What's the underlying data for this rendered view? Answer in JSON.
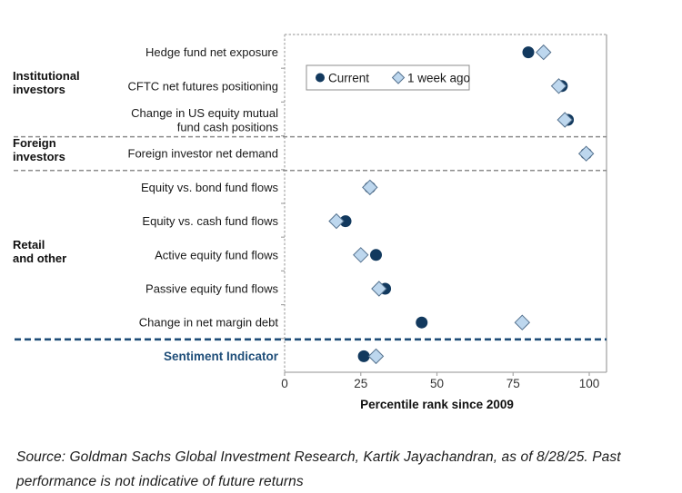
{
  "chart_data": {
    "type": "scatter",
    "title": "",
    "xlabel": "Percentile rank since 2009",
    "x_ticks": [
      0,
      25,
      50,
      75,
      100
    ],
    "xlim": [
      0,
      105
    ],
    "grid": false,
    "legend_position": "top-left-inside",
    "legend": {
      "current_label": "Current",
      "week_ago_label": "1 week ago"
    },
    "colors": {
      "current_marker": "#12395E",
      "week_ago_fill": "#BDD7EE",
      "week_ago_stroke": "#54718E",
      "navy_accent": "#1F4E79",
      "separator_gray": "#8C8C8C",
      "axis_gray": "#A6A6A6",
      "label_text": "#1A1A1A"
    },
    "groups": [
      {
        "label_lines": [
          "Institutional",
          "investors"
        ],
        "first_row": 0,
        "last_row": 2
      },
      {
        "label_lines": [
          "Foreign",
          "investors"
        ],
        "first_row": 3,
        "last_row": 3
      },
      {
        "label_lines": [
          "Retail",
          "and other"
        ],
        "first_row": 4,
        "last_row": 8
      }
    ],
    "separators": [
      {
        "after_row": 2,
        "style": "gray"
      },
      {
        "after_row": 3,
        "style": "gray"
      },
      {
        "after_row": 8,
        "style": "navy"
      }
    ],
    "rows": [
      {
        "label_lines": [
          "Hedge fund net exposure"
        ],
        "current": 80,
        "week_ago": 85
      },
      {
        "label_lines": [
          "CFTC net futures positioning"
        ],
        "current": 91,
        "week_ago": 90
      },
      {
        "label_lines": [
          "Change in US equity mutual",
          "fund cash positions"
        ],
        "current": 93,
        "week_ago": 92
      },
      {
        "label_lines": [
          "Foreign investor net demand"
        ],
        "current": 99,
        "week_ago": 99
      },
      {
        "label_lines": [
          "Equity vs. bond fund flows"
        ],
        "current": 28,
        "week_ago": 28
      },
      {
        "label_lines": [
          "Equity vs. cash fund flows"
        ],
        "current": 20,
        "week_ago": 17
      },
      {
        "label_lines": [
          "Active equity fund flows"
        ],
        "current": 30,
        "week_ago": 25
      },
      {
        "label_lines": [
          "Passive equity fund flows"
        ],
        "current": 33,
        "week_ago": 31
      },
      {
        "label_lines": [
          "Change in net margin debt"
        ],
        "current": 45,
        "week_ago": 78
      },
      {
        "label_lines": [
          "Sentiment Indicator"
        ],
        "current": 26,
        "week_ago": 30,
        "emphasis": true
      }
    ]
  },
  "source_note": "Source: Goldman Sachs Global Investment Research, Kartik Jayachandran,  as of 8/28/25. Past performance is not indicative of future returns"
}
